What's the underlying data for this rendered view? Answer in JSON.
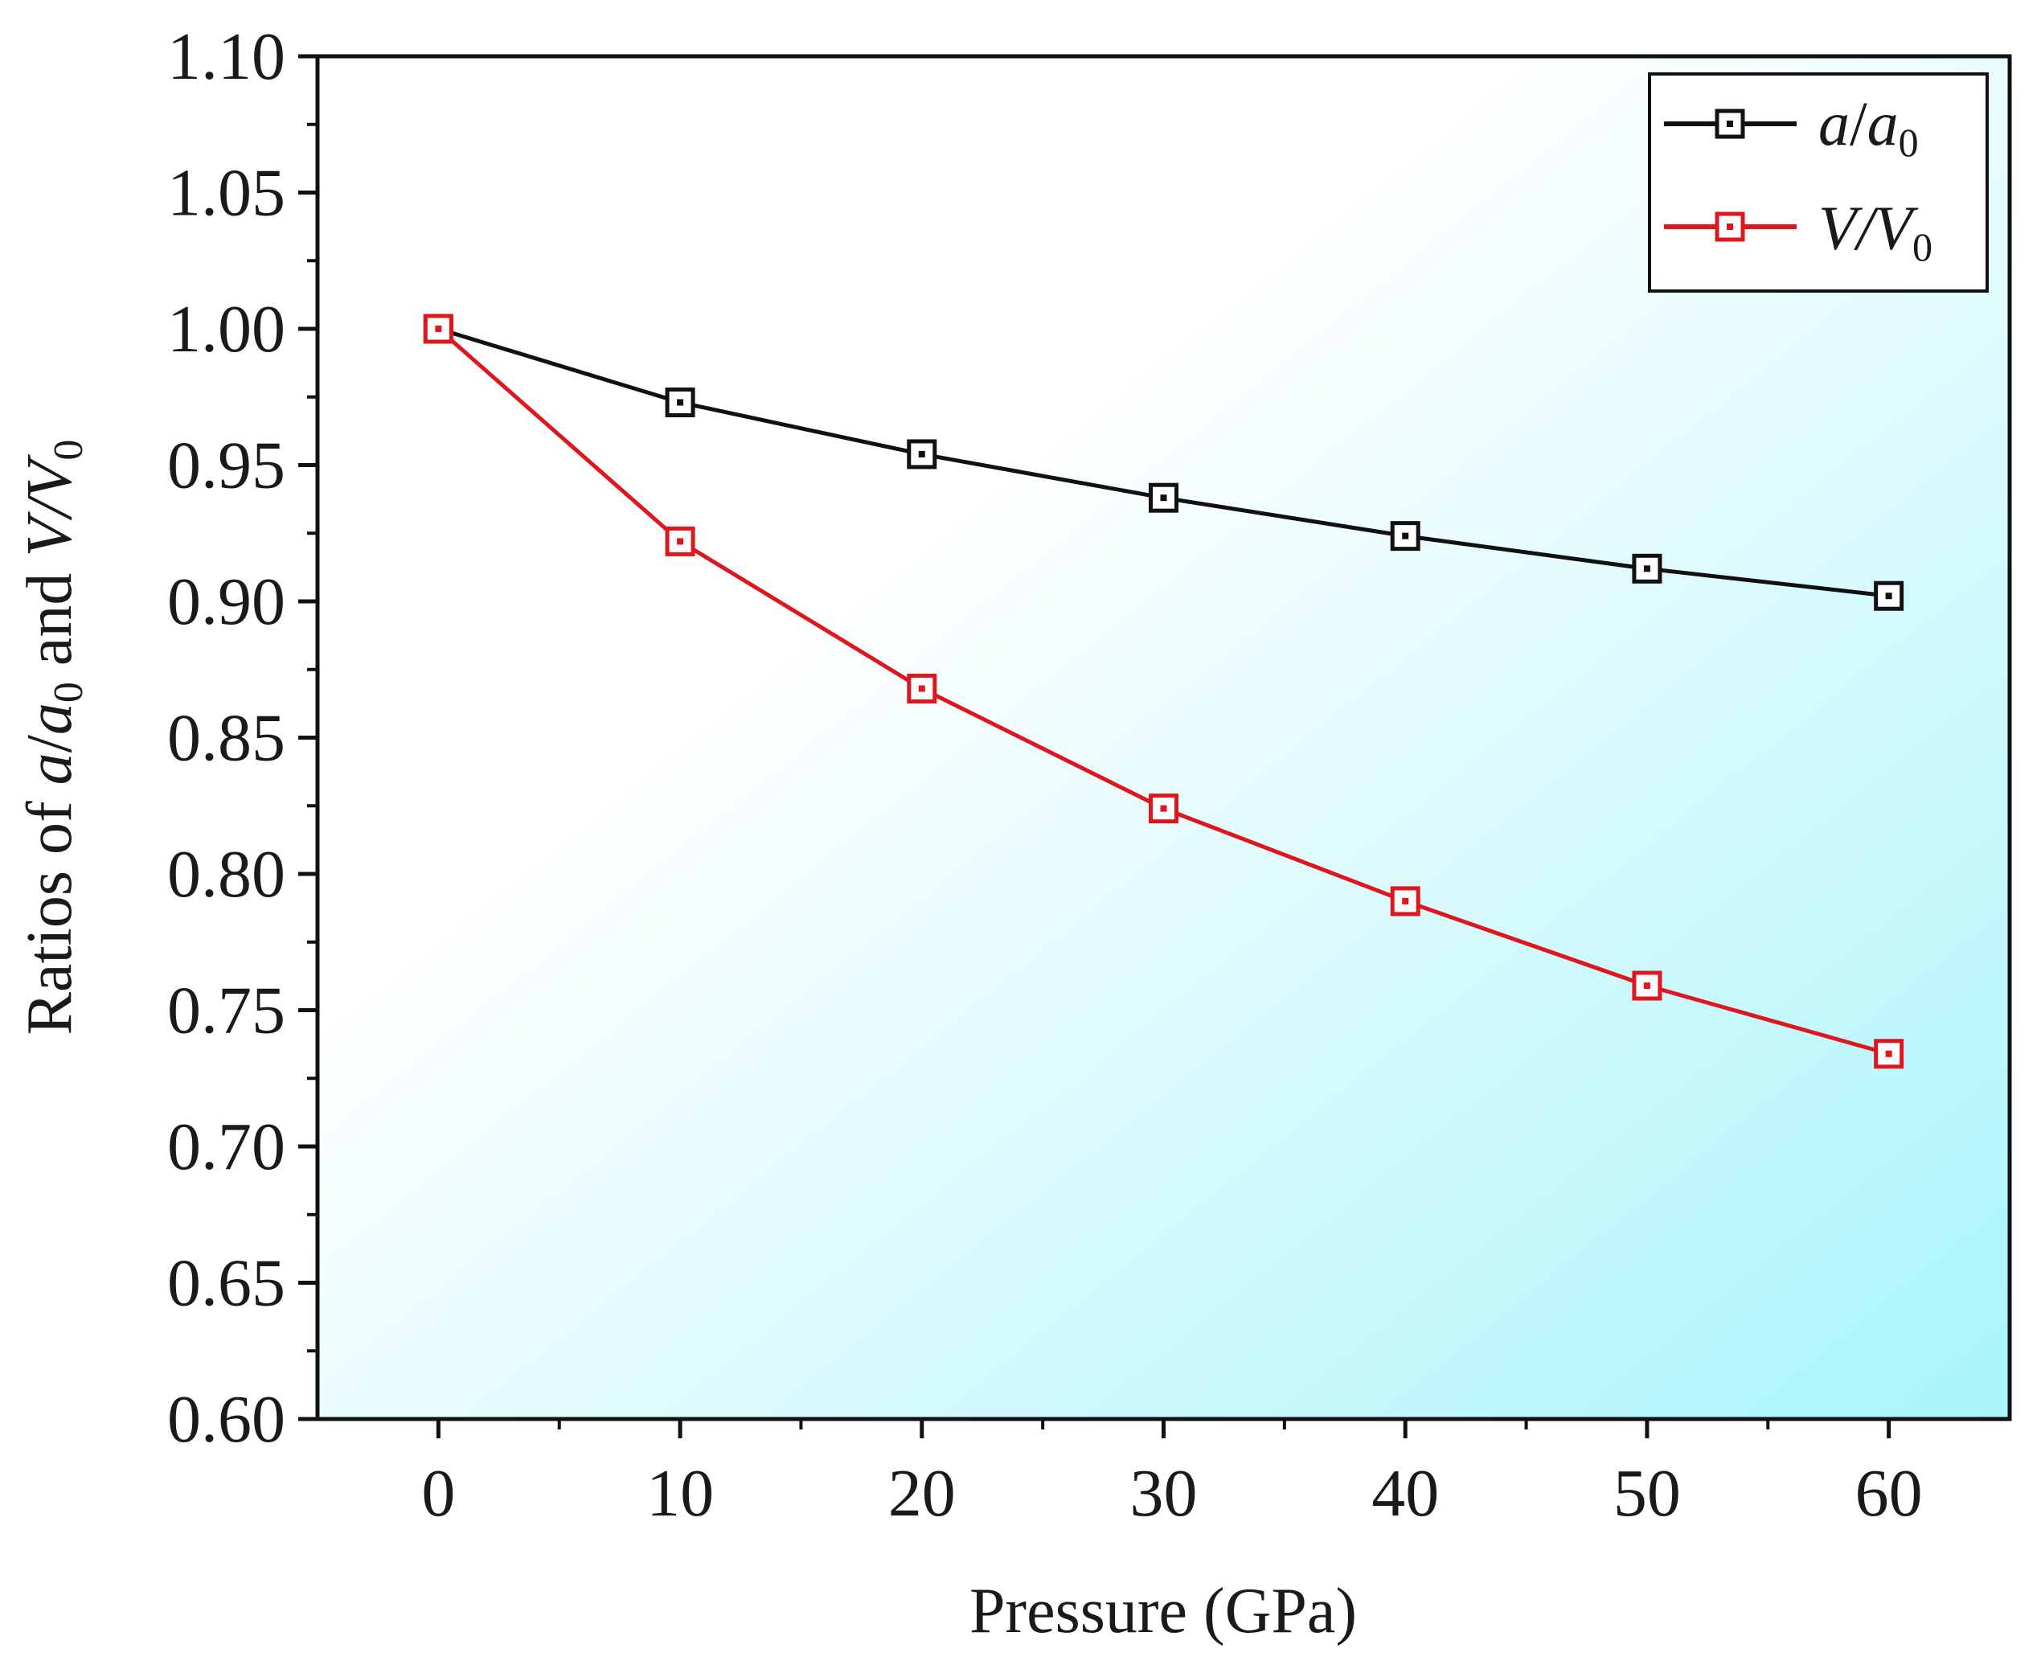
{
  "chart_data": {
    "type": "line",
    "title": "",
    "xlabel": "Pressure (GPa)",
    "ylabel": {
      "prefix": "Ratios of ",
      "var1": "a",
      "sep1": "/",
      "var1b": "a",
      "sub1": "0",
      "mid": " and ",
      "var2": "V",
      "sep2": "/",
      "var2b": "V",
      "sub2": "0"
    },
    "xlim": [
      -5,
      65
    ],
    "ylim": [
      0.6,
      1.1
    ],
    "x": [
      0,
      10,
      20,
      30,
      40,
      50,
      60
    ],
    "xticks": [
      0,
      10,
      20,
      30,
      40,
      50,
      60
    ],
    "xtick_labels": [
      "0",
      "10",
      "20",
      "30",
      "40",
      "50",
      "60"
    ],
    "yticks": [
      0.6,
      0.65,
      0.7,
      0.75,
      0.8,
      0.85,
      0.9,
      0.95,
      1.0,
      1.05,
      1.1
    ],
    "ytick_labels": [
      "0.60",
      "0.65",
      "0.70",
      "0.75",
      "0.80",
      "0.85",
      "0.90",
      "0.95",
      "1.00",
      "1.05",
      "1.10"
    ],
    "series": [
      {
        "name": "a/a0",
        "legend": {
          "var": "a",
          "sep": "/",
          "varb": "a",
          "sub": "0"
        },
        "color": "#111111",
        "values": [
          1.0,
          0.973,
          0.954,
          0.938,
          0.924,
          0.912,
          0.902
        ]
      },
      {
        "name": "V/V0",
        "legend": {
          "var": "V",
          "sep": "/",
          "varb": "V",
          "sub": "0"
        },
        "color": "#e0161e",
        "values": [
          1.0,
          0.922,
          0.868,
          0.824,
          0.79,
          0.759,
          0.734
        ]
      }
    ],
    "legend_position": "top-right",
    "background_gradient": [
      "#ffffff",
      "#a8f4fb"
    ]
  }
}
